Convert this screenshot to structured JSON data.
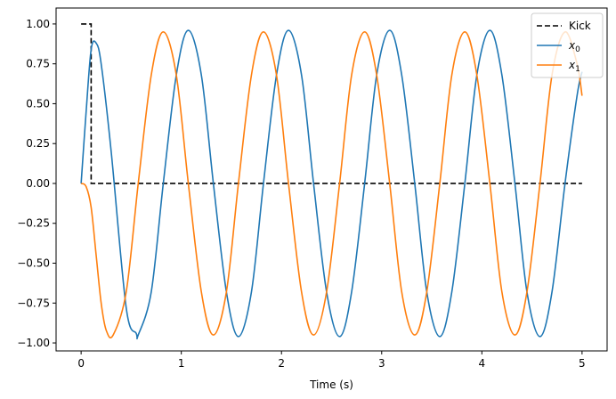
{
  "chart_data": {
    "type": "line",
    "title": "",
    "xlabel": "Time (s)",
    "ylabel": "",
    "xlim": [
      -0.25,
      5.25
    ],
    "ylim": [
      -1.05,
      1.1
    ],
    "xticks": [
      0,
      1,
      2,
      3,
      4,
      5
    ],
    "xtick_labels": [
      "0",
      "1",
      "2",
      "3",
      "4",
      "5"
    ],
    "yticks": [
      -1.0,
      -0.75,
      -0.5,
      -0.25,
      0.0,
      0.25,
      0.5,
      0.75,
      1.0
    ],
    "ytick_labels": [
      "−1.00",
      "−0.75",
      "−0.50",
      "−0.25",
      "0.00",
      "0.25",
      "0.50",
      "0.75",
      "1.00"
    ],
    "grid": false,
    "legend_position": "top-right",
    "series": [
      {
        "name": "Kick",
        "style": "dashed",
        "color": "#000000",
        "x": [
          0,
          0.1,
          0.1,
          5.0
        ],
        "y": [
          1.0,
          1.0,
          0.0,
          0.0
        ]
      },
      {
        "name": "x",
        "name_subscript": "0",
        "style": "solid",
        "color": "#1f77b4",
        "x": [
          0,
          0.05,
          0.1,
          0.15,
          0.2,
          0.3,
          0.45,
          0.55,
          0.57,
          0.7,
          0.82,
          0.95,
          1.07,
          1.2,
          1.32,
          1.45,
          1.57,
          1.7,
          1.82,
          1.95,
          2.07,
          2.2,
          2.32,
          2.45,
          2.58,
          2.7,
          2.83,
          2.95,
          3.08,
          3.2,
          3.33,
          3.45,
          3.58,
          3.7,
          3.83,
          3.95,
          4.08,
          4.2,
          4.33,
          4.45,
          4.58,
          4.7,
          4.83,
          4.95,
          5.0
        ],
        "y": [
          0.0,
          0.45,
          0.84,
          0.88,
          0.75,
          0.2,
          -0.78,
          -0.94,
          -0.95,
          -0.68,
          0.0,
          0.68,
          0.96,
          0.68,
          0.0,
          -0.68,
          -0.96,
          -0.68,
          0.0,
          0.68,
          0.96,
          0.68,
          0.0,
          -0.68,
          -0.96,
          -0.68,
          0.0,
          0.68,
          0.96,
          0.68,
          0.0,
          -0.68,
          -0.96,
          -0.68,
          0.0,
          0.68,
          0.96,
          0.68,
          0.0,
          -0.68,
          -0.96,
          -0.68,
          0.0,
          0.55,
          0.7
        ]
      },
      {
        "name": "x",
        "name_subscript": "1",
        "style": "solid",
        "color": "#ff7f0e",
        "x": [
          0,
          0.05,
          0.1,
          0.15,
          0.2,
          0.25,
          0.32,
          0.45,
          0.57,
          0.7,
          0.82,
          0.95,
          1.07,
          1.2,
          1.32,
          1.45,
          1.57,
          1.7,
          1.82,
          1.95,
          2.07,
          2.2,
          2.32,
          2.45,
          2.58,
          2.7,
          2.83,
          2.95,
          3.08,
          3.2,
          3.33,
          3.45,
          3.58,
          3.7,
          3.83,
          3.95,
          4.08,
          4.2,
          4.33,
          4.45,
          4.58,
          4.7,
          4.83,
          4.95,
          5.0
        ],
        "y": [
          0.0,
          -0.02,
          -0.15,
          -0.45,
          -0.75,
          -0.92,
          -0.95,
          -0.68,
          0.0,
          0.68,
          0.95,
          0.68,
          0.0,
          -0.68,
          -0.95,
          -0.68,
          0.0,
          0.68,
          0.95,
          0.68,
          0.0,
          -0.68,
          -0.95,
          -0.68,
          0.0,
          0.68,
          0.95,
          0.68,
          0.0,
          -0.68,
          -0.95,
          -0.68,
          0.0,
          0.68,
          0.95,
          0.68,
          0.0,
          -0.68,
          -0.95,
          -0.68,
          0.0,
          0.68,
          0.95,
          0.75,
          0.55
        ]
      }
    ]
  }
}
